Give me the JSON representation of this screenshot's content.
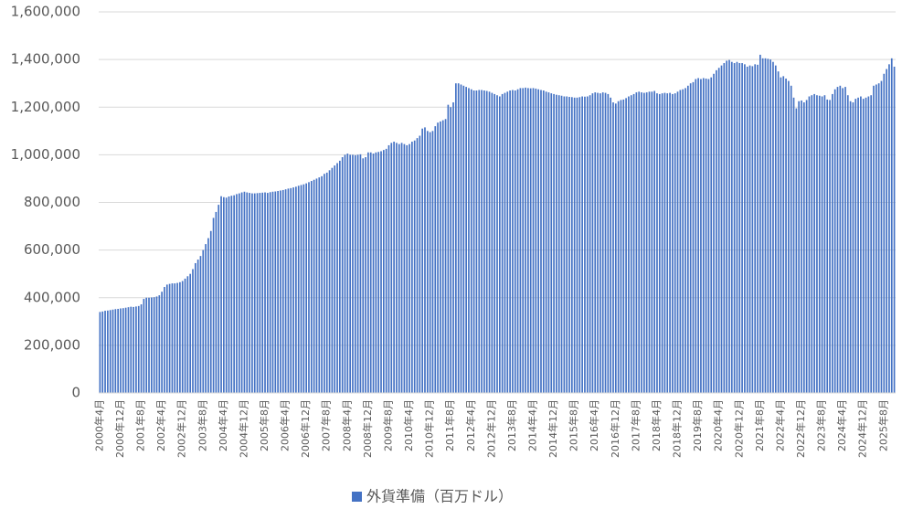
{
  "chart_data": {
    "type": "bar",
    "categories": [
      "2000年4月",
      null,
      null,
      null,
      null,
      null,
      null,
      null,
      "2000年12月",
      null,
      null,
      null,
      null,
      null,
      null,
      null,
      "2001年8月",
      null,
      null,
      null,
      null,
      null,
      null,
      null,
      "2002年4月",
      null,
      null,
      null,
      null,
      null,
      null,
      null,
      "2002年12月",
      null,
      null,
      null,
      null,
      null,
      null,
      null,
      "2003年8月",
      null,
      null,
      null,
      null,
      null,
      null,
      null,
      "2004年4月",
      null,
      null,
      null,
      null,
      null,
      null,
      null,
      "2004年12月",
      null,
      null,
      null,
      null,
      null,
      null,
      null,
      "2005年8月",
      null,
      null,
      null,
      null,
      null,
      null,
      null,
      "2006年4月",
      null,
      null,
      null,
      null,
      null,
      null,
      null,
      "2006年12月",
      null,
      null,
      null,
      null,
      null,
      null,
      null,
      "2007年8月",
      null,
      null,
      null,
      null,
      null,
      null,
      null,
      "2008年4月",
      null,
      null,
      null,
      null,
      null,
      null,
      null,
      "2008年12月",
      null,
      null,
      null,
      null,
      null,
      null,
      null,
      "2009年8月",
      null,
      null,
      null,
      null,
      null,
      null,
      null,
      "2010年4月",
      null,
      null,
      null,
      null,
      null,
      null,
      null,
      "2010年12月",
      null,
      null,
      null,
      null,
      null,
      null,
      null,
      "2011年8月",
      null,
      null,
      null,
      null,
      null,
      null,
      null,
      "2012年4月",
      null,
      null,
      null,
      null,
      null,
      null,
      null,
      "2012年12月",
      null,
      null,
      null,
      null,
      null,
      null,
      null,
      "2013年8月",
      null,
      null,
      null,
      null,
      null,
      null,
      null,
      "2014年4月",
      null,
      null,
      null,
      null,
      null,
      null,
      null,
      "2014年12月",
      null,
      null,
      null,
      null,
      null,
      null,
      null,
      "2015年8月",
      null,
      null,
      null,
      null,
      null,
      null,
      null,
      "2016年4月",
      null,
      null,
      null,
      null,
      null,
      null,
      null,
      "2016年12月",
      null,
      null,
      null,
      null,
      null,
      null,
      null,
      "2017年8月",
      null,
      null,
      null,
      null,
      null,
      null,
      null,
      "2018年4月",
      null,
      null,
      null,
      null,
      null,
      null,
      null,
      "2018年12月",
      null,
      null,
      null,
      null,
      null,
      null,
      null,
      "2019年8月",
      null,
      null,
      null,
      null,
      null,
      null,
      null,
      "2020年4月",
      null,
      null,
      null,
      null,
      null,
      null,
      null,
      "2020年12月",
      null,
      null,
      null,
      null,
      null,
      null,
      null,
      "2021年8月",
      null,
      null,
      null,
      null,
      null,
      null,
      null,
      "2022年4月",
      null,
      null,
      null,
      null,
      null,
      null,
      null,
      "2022年12月",
      null,
      null,
      null,
      null,
      null,
      null,
      null,
      "2023年8月",
      null,
      null,
      null,
      null,
      null,
      null,
      null,
      "2024年4月",
      null,
      null,
      null,
      null,
      null,
      null,
      null,
      "2024年12月",
      null,
      null,
      null,
      null,
      null,
      null,
      null,
      "2025年8月",
      null,
      null,
      null,
      null
    ],
    "series": [
      {
        "name": "外貨準備（百万ドル）",
        "color": "#4472c4",
        "values": [
          340000,
          342000,
          345000,
          346000,
          348000,
          350000,
          352000,
          353000,
          355000,
          356000,
          358000,
          360000,
          362000,
          361000,
          363000,
          365000,
          372000,
          395000,
          400000,
          400000,
          401000,
          402000,
          405000,
          410000,
          425000,
          445000,
          455000,
          458000,
          460000,
          460000,
          462000,
          465000,
          470000,
          480000,
          490000,
          500000,
          520000,
          545000,
          560000,
          575000,
          600000,
          625000,
          650000,
          680000,
          735000,
          760000,
          790000,
          826000,
          822000,
          820000,
          825000,
          828000,
          830000,
          835000,
          838000,
          842000,
          845000,
          842000,
          840000,
          838000,
          838000,
          839000,
          840000,
          841000,
          842000,
          840000,
          843000,
          845000,
          846000,
          848000,
          850000,
          852000,
          855000,
          858000,
          860000,
          863000,
          866000,
          870000,
          873000,
          876000,
          880000,
          885000,
          890000,
          895000,
          900000,
          905000,
          910000,
          920000,
          925000,
          935000,
          945000,
          955000,
          965000,
          975000,
          990000,
          1000000,
          1005000,
          1000000,
          1000000,
          998000,
          1000000,
          1002000,
          985000,
          990000,
          1010000,
          1010000,
          1005000,
          1010000,
          1012000,
          1015000,
          1020000,
          1025000,
          1040000,
          1050000,
          1055000,
          1050000,
          1045000,
          1050000,
          1045000,
          1040000,
          1045000,
          1055000,
          1060000,
          1070000,
          1080000,
          1110000,
          1115000,
          1100000,
          1095000,
          1100000,
          1120000,
          1135000,
          1140000,
          1145000,
          1150000,
          1210000,
          1200000,
          1220000,
          1300000,
          1300000,
          1295000,
          1290000,
          1285000,
          1280000,
          1275000,
          1270000,
          1270000,
          1272000,
          1272000,
          1270000,
          1268000,
          1265000,
          1260000,
          1255000,
          1250000,
          1245000,
          1255000,
          1260000,
          1265000,
          1270000,
          1272000,
          1270000,
          1275000,
          1280000,
          1280000,
          1282000,
          1280000,
          1279000,
          1280000,
          1278000,
          1275000,
          1272000,
          1270000,
          1265000,
          1262000,
          1258000,
          1255000,
          1252000,
          1250000,
          1248000,
          1245000,
          1245000,
          1243000,
          1242000,
          1240000,
          1240000,
          1242000,
          1245000,
          1244000,
          1245000,
          1250000,
          1258000,
          1262000,
          1260000,
          1258000,
          1262000,
          1260000,
          1255000,
          1240000,
          1220000,
          1215000,
          1225000,
          1230000,
          1232000,
          1238000,
          1245000,
          1250000,
          1255000,
          1262000,
          1265000,
          1262000,
          1260000,
          1262000,
          1265000,
          1265000,
          1268000,
          1258000,
          1255000,
          1258000,
          1260000,
          1258000,
          1260000,
          1255000,
          1258000,
          1265000,
          1272000,
          1275000,
          1280000,
          1290000,
          1300000,
          1305000,
          1318000,
          1322000,
          1318000,
          1322000,
          1320000,
          1318000,
          1325000,
          1340000,
          1355000,
          1365000,
          1375000,
          1385000,
          1395000,
          1398000,
          1390000,
          1385000,
          1390000,
          1385000,
          1385000,
          1380000,
          1370000,
          1375000,
          1372000,
          1380000,
          1378000,
          1420000,
          1405000,
          1405000,
          1403000,
          1400000,
          1390000,
          1375000,
          1350000,
          1325000,
          1330000,
          1320000,
          1310000,
          1290000,
          1240000,
          1195000,
          1225000,
          1228000,
          1220000,
          1230000,
          1245000,
          1250000,
          1255000,
          1250000,
          1248000,
          1245000,
          1250000,
          1232000,
          1230000,
          1255000,
          1275000,
          1285000,
          1290000,
          1280000,
          1285000,
          1250000,
          1225000,
          1220000,
          1235000,
          1240000,
          1245000,
          1235000,
          1240000,
          1245000,
          1250000,
          1290000,
          1295000,
          1300000,
          1310000,
          1340000,
          1360000,
          1380000,
          1405000,
          1370000
        ]
      }
    ],
    "ylim": [
      0,
      1600000
    ],
    "yticks": [
      0,
      {
        "value": 200000,
        "label": "200,000"
      },
      {
        "value": 400000,
        "label": "400,000"
      },
      {
        "value": 600000,
        "label": "600,000"
      },
      {
        "value": 800000,
        "label": "800,000"
      },
      {
        "value": 1000000,
        "label": "1,000,000"
      },
      {
        "value": 1200000,
        "label": "1,200,000"
      },
      {
        "value": 1400000,
        "label": "1,400,000"
      },
      {
        "value": 1600000,
        "label": "1,600,000"
      }
    ],
    "grid": true,
    "legend": "bottom"
  }
}
